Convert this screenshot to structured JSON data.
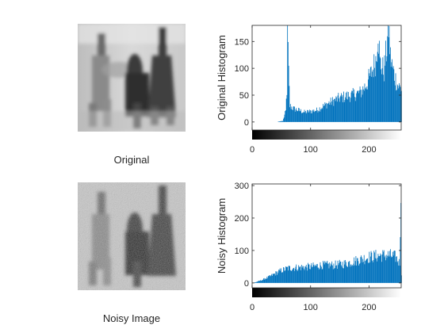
{
  "figure": {
    "images": [
      {
        "caption": "Original",
        "type": "blurred-grayscale-photo"
      },
      {
        "caption": "Noisy Image",
        "type": "noisy-grayscale-photo"
      }
    ],
    "colors": {
      "bar": "#0072BD",
      "axis": "#262626",
      "background": "#ffffff"
    }
  },
  "chart_data": [
    {
      "type": "bar",
      "ylabel": "Original Histogram",
      "xlabel": "",
      "xlim": [
        0,
        255
      ],
      "ylim": [
        -15,
        180
      ],
      "xticks": [
        "0",
        "100",
        "200"
      ],
      "xtick_values": [
        0,
        100,
        200
      ],
      "yticks": [
        "0",
        "50",
        "100",
        "150"
      ],
      "ytick_values": [
        0,
        50,
        100,
        150
      ],
      "colorbar": "gray",
      "profile": [
        [
          0,
          0
        ],
        [
          40,
          0
        ],
        [
          52,
          2
        ],
        [
          57,
          20
        ],
        [
          59,
          60
        ],
        [
          60,
          180
        ],
        [
          62,
          90
        ],
        [
          64,
          30
        ],
        [
          70,
          25
        ],
        [
          90,
          18
        ],
        [
          110,
          22
        ],
        [
          130,
          35
        ],
        [
          150,
          45
        ],
        [
          170,
          50
        ],
        [
          185,
          55
        ],
        [
          195,
          70
        ],
        [
          205,
          95
        ],
        [
          212,
          120
        ],
        [
          215,
          180
        ],
        [
          218,
          110
        ],
        [
          225,
          95
        ],
        [
          230,
          140
        ],
        [
          233,
          180
        ],
        [
          236,
          120
        ],
        [
          242,
          90
        ],
        [
          248,
          70
        ],
        [
          255,
          60
        ]
      ]
    },
    {
      "type": "bar",
      "ylabel": "Noisy Histogram",
      "xlabel": "",
      "xlim": [
        0,
        255
      ],
      "ylim": [
        -15,
        305
      ],
      "xticks": [
        "0",
        "100",
        "200"
      ],
      "xtick_values": [
        0,
        100,
        200
      ],
      "yticks": [
        "0",
        "100",
        "200",
        "300"
      ],
      "ytick_values": [
        0,
        100,
        200,
        300
      ],
      "colorbar": "gray",
      "profile": [
        [
          0,
          0
        ],
        [
          5,
          2
        ],
        [
          15,
          8
        ],
        [
          30,
          20
        ],
        [
          45,
          35
        ],
        [
          60,
          45
        ],
        [
          80,
          48
        ],
        [
          100,
          50
        ],
        [
          120,
          55
        ],
        [
          140,
          55
        ],
        [
          160,
          60
        ],
        [
          180,
          70
        ],
        [
          200,
          80
        ],
        [
          220,
          85
        ],
        [
          235,
          85
        ],
        [
          245,
          80
        ],
        [
          252,
          60
        ],
        [
          254,
          300
        ],
        [
          255,
          20
        ]
      ]
    }
  ]
}
